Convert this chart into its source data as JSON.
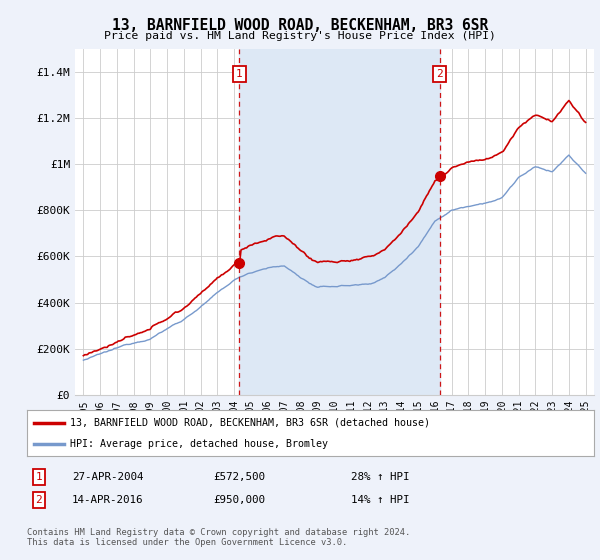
{
  "title": "13, BARNFIELD WOOD ROAD, BECKENHAM, BR3 6SR",
  "subtitle": "Price paid vs. HM Land Registry's House Price Index (HPI)",
  "ylabel_ticks": [
    "£0",
    "£200K",
    "£400K",
    "£600K",
    "£800K",
    "£1M",
    "£1.2M",
    "£1.4M"
  ],
  "ytick_vals": [
    0,
    200000,
    400000,
    600000,
    800000,
    1000000,
    1200000,
    1400000
  ],
  "ylim": [
    0,
    1500000
  ],
  "xlim_start": 1994.5,
  "xlim_end": 2025.5,
  "xticks": [
    1995,
    1996,
    1997,
    1998,
    1999,
    2000,
    2001,
    2002,
    2003,
    2004,
    2005,
    2006,
    2007,
    2008,
    2009,
    2010,
    2011,
    2012,
    2013,
    2014,
    2015,
    2016,
    2017,
    2018,
    2019,
    2020,
    2021,
    2022,
    2023,
    2024,
    2025
  ],
  "red_color": "#cc0000",
  "blue_color": "#7799cc",
  "shade_color": "#dde8f5",
  "dashed_color": "#cc0000",
  "sale1_x": 2004.32,
  "sale1_y": 572500,
  "sale2_x": 2016.29,
  "sale2_y": 950000,
  "vline1_x": 2004.32,
  "vline2_x": 2016.29,
  "legend_line1": "13, BARNFIELD WOOD ROAD, BECKENHAM, BR3 6SR (detached house)",
  "legend_line2": "HPI: Average price, detached house, Bromley",
  "note1_label": "1",
  "note1_date": "27-APR-2004",
  "note1_price": "£572,500",
  "note1_hpi": "28% ↑ HPI",
  "note2_label": "2",
  "note2_date": "14-APR-2016",
  "note2_price": "£950,000",
  "note2_hpi": "14% ↑ HPI",
  "footer": "Contains HM Land Registry data © Crown copyright and database right 2024.\nThis data is licensed under the Open Government Licence v3.0.",
  "background_color": "#eef2fa",
  "plot_bg_color": "#ffffff"
}
